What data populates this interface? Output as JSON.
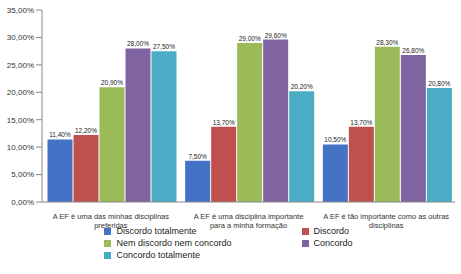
{
  "chart_data": {
    "type": "bar",
    "categories": [
      "A EF é uma das minhas disciplinas preferidas",
      "A EF é uma disciplina importante para a minha formação",
      "A EF é tão importante como as outras disciplinas"
    ],
    "series": [
      {
        "name": "Discordo totalmente",
        "color": "#4472c4",
        "values": [
          11.4,
          7.5,
          10.5
        ],
        "value_labels": [
          "11,40%",
          "7,50%",
          "10,50%"
        ]
      },
      {
        "name": "Discordo",
        "color": "#c0504d",
        "values": [
          12.2,
          13.7,
          13.7
        ],
        "value_labels": [
          "12,20%",
          "13,70%",
          "13,70%"
        ]
      },
      {
        "name": "Nem discordo nem concordo",
        "color": "#9bbb59",
        "values": [
          20.9,
          29.0,
          28.3
        ],
        "value_labels": [
          "20,90%",
          "29,00%",
          "28,30%"
        ]
      },
      {
        "name": "Concordo",
        "color": "#8064a2",
        "values": [
          28.0,
          29.6,
          26.8
        ],
        "value_labels": [
          "28,00%",
          "29,60%",
          "26,80%"
        ]
      },
      {
        "name": "Concordo totalmente",
        "color": "#4bacc6",
        "values": [
          27.5,
          20.2,
          20.8
        ],
        "value_labels": [
          "27,50%",
          "20,20%",
          "20,80%"
        ]
      }
    ],
    "ylim": [
      0,
      35
    ],
    "yticks": [
      {
        "value": 0,
        "label": "0,00%"
      },
      {
        "value": 5,
        "label": "5,00%"
      },
      {
        "value": 10,
        "label": "10,00%"
      },
      {
        "value": 15,
        "label": "15,00%"
      },
      {
        "value": 20,
        "label": "20,00%"
      },
      {
        "value": 25,
        "label": "25,00%"
      },
      {
        "value": 30,
        "label": "30,00%"
      },
      {
        "value": 35,
        "label": "35,00%"
      }
    ],
    "grid": false,
    "legend": "bottom",
    "data_labels": true
  }
}
